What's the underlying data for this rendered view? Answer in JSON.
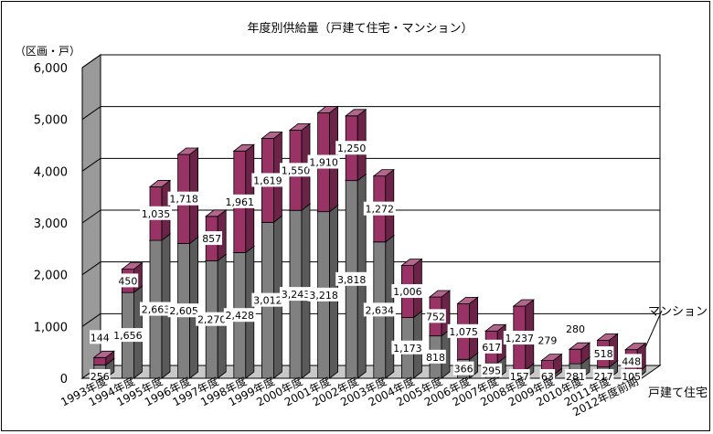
{
  "chart_data": {
    "type": "bar",
    "title": "年度別供給量（戸建て住宅・マンション）",
    "ylabel": "（区画・戸）",
    "ylim": [
      0,
      6000
    ],
    "yticks": [
      "0",
      "1,000",
      "2,000",
      "3,000",
      "4,000",
      "5,000",
      "6,000"
    ],
    "yticks_values": [
      0,
      1000,
      2000,
      3000,
      4000,
      5000,
      6000
    ],
    "categories": [
      "1993年度",
      "1994年度",
      "1995年度",
      "1996年度",
      "1997年度",
      "1998年度",
      "1999年度",
      "2000年度",
      "2001年度",
      "2002年度",
      "2003年度",
      "2004年度",
      "2005年度",
      "2006年度",
      "2007年度",
      "2008年度",
      "2009年度",
      "2010年度",
      "2011年度",
      "2012年度前期"
    ],
    "series": [
      {
        "name": "戸建て住宅",
        "color": "#808080",
        "values": [
          256,
          1656,
          2663,
          2605,
          2270,
          2428,
          3012,
          3243,
          3218,
          3818,
          2634,
          1173,
          818,
          366,
          295,
          157,
          63,
          281,
          217,
          105
        ],
        "labels": [
          "256",
          "1,656",
          "2,663",
          "2,605",
          "2,270",
          "2,428",
          "3,012",
          "3,243",
          "3,218",
          "3,818",
          "2,634",
          "1,173",
          "818",
          "366",
          "295",
          "157",
          "63",
          "281",
          "217",
          "105"
        ]
      },
      {
        "name": "マンション",
        "color": "#993366",
        "values": [
          144,
          450,
          1035,
          1718,
          857,
          1961,
          1619,
          1550,
          1910,
          1250,
          1272,
          1006,
          752,
          1075,
          617,
          1237,
          279,
          280,
          518,
          448
        ],
        "labels": [
          "144",
          "450",
          "1,035",
          "1,718",
          "857",
          "1,961",
          "1,619",
          "1,550",
          "1,910",
          "1,250",
          "1,272",
          "1,006",
          "752",
          "1,075",
          "617",
          "1,237",
          "279",
          "280",
          "518",
          "448"
        ]
      }
    ],
    "stacked": true,
    "grid": true,
    "legend": "right"
  }
}
